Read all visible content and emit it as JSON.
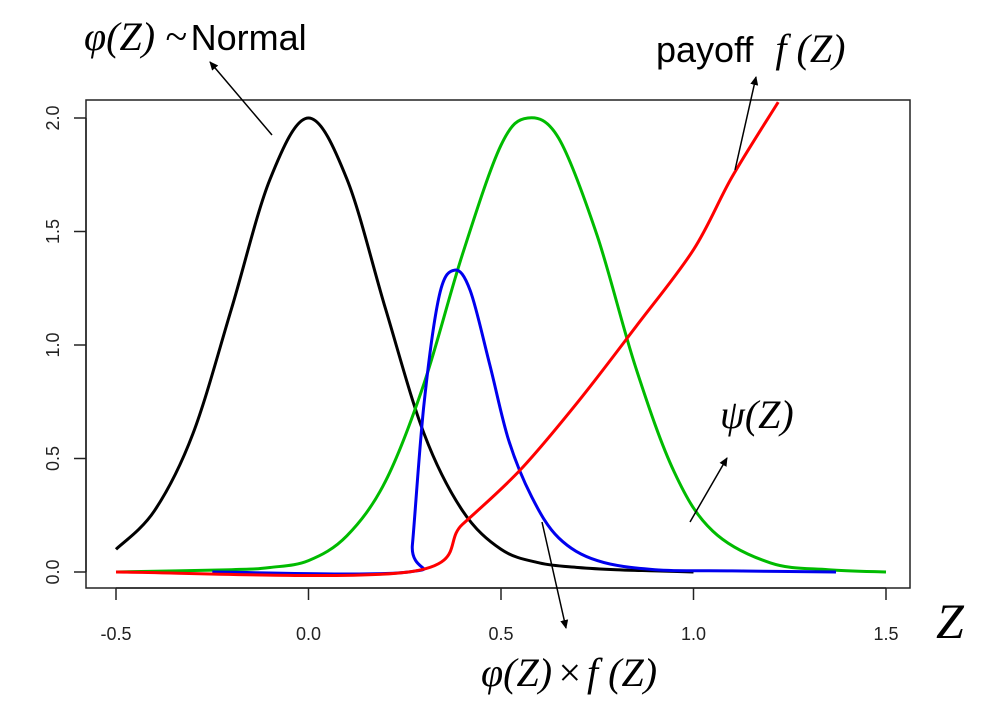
{
  "chart_data": {
    "type": "line",
    "xlabel": "Z",
    "xlim": [
      -0.5,
      1.5
    ],
    "ylim": [
      0,
      2.0
    ],
    "x_ticks": [
      -0.5,
      0.0,
      0.5,
      1.0,
      1.5
    ],
    "x_tick_labels": [
      "-0.5",
      "0.0",
      "0.5",
      "1.0",
      "1.5"
    ],
    "y_ticks": [
      0.0,
      0.5,
      1.0,
      1.5,
      2.0
    ],
    "y_tick_labels": [
      "0.0",
      "0.5",
      "1.0",
      "1.5",
      "2.0"
    ],
    "grid": false,
    "series": [
      {
        "color": "#000000",
        "x": [
          -0.5,
          -0.4,
          -0.3,
          -0.2,
          -0.1,
          0.0,
          0.1,
          0.2,
          0.3,
          0.4,
          0.5,
          0.6,
          0.7,
          0.8,
          0.9,
          1.0
        ],
        "values": [
          0.1,
          0.27,
          0.61,
          1.16,
          1.73,
          2.0,
          1.73,
          1.16,
          0.61,
          0.27,
          0.1,
          0.04,
          0.02,
          0.01,
          0.005,
          0.0
        ]
      },
      {
        "color": "#00bb00",
        "x": [
          -0.5,
          -0.2,
          -0.1,
          0.0,
          0.1,
          0.2,
          0.3,
          0.4,
          0.5,
          0.57,
          0.65,
          0.75,
          0.85,
          0.95,
          1.05,
          1.2,
          1.35,
          1.5
        ],
        "values": [
          0.0,
          0.01,
          0.02,
          0.05,
          0.16,
          0.4,
          0.83,
          1.4,
          1.88,
          2.0,
          1.91,
          1.48,
          0.9,
          0.44,
          0.18,
          0.04,
          0.01,
          0.0
        ]
      },
      {
        "color": "#0000ee",
        "x": [
          -0.25,
          0.26,
          0.27,
          0.3,
          0.34,
          0.38,
          0.42,
          0.47,
          0.52,
          0.58,
          0.65,
          0.75,
          0.9,
          1.1,
          1.37
        ],
        "values": [
          0.0,
          0.0,
          0.12,
          0.74,
          1.22,
          1.33,
          1.24,
          0.92,
          0.58,
          0.33,
          0.15,
          0.05,
          0.01,
          0.005,
          0.0
        ]
      },
      {
        "color": "#ff0000",
        "x": [
          -0.5,
          0.26,
          0.4,
          0.55,
          0.7,
          0.85,
          1.0,
          1.1,
          1.22
        ],
        "values": [
          0.0,
          0.0,
          0.21,
          0.45,
          0.75,
          1.08,
          1.42,
          1.74,
          2.07
        ]
      }
    ],
    "annotations": [
      {
        "text_math": "φ(Z)",
        "text_tail": " ~",
        "text_word": "Normal"
      },
      {
        "text_word": "payoff",
        "text_math": "f (Z)"
      },
      {
        "text_math": "ψ(Z)"
      },
      {
        "text_math_a": "φ(Z)",
        "text_op": "×",
        "text_math_b": "f (Z)"
      }
    ]
  }
}
